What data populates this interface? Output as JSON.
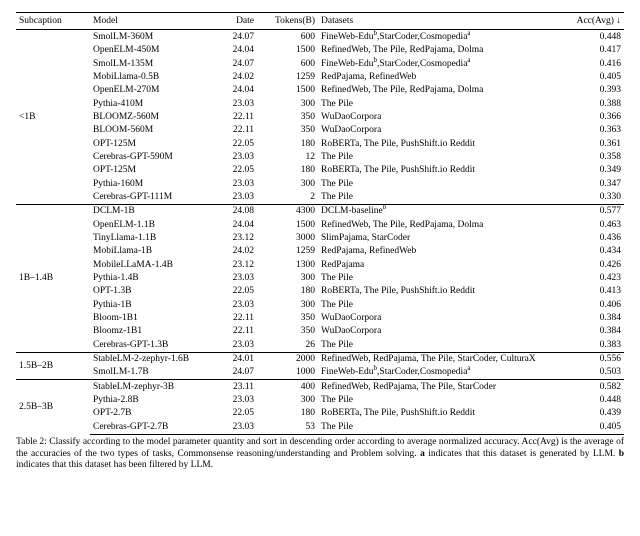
{
  "headers": {
    "subcaption": "Subcaption",
    "model": "Model",
    "date": "Date",
    "tokens": "Tokens(B)",
    "datasets": "Datasets",
    "acc": "Acc(Avg) ↓"
  },
  "groups": [
    {
      "label": "<1B",
      "rows": [
        {
          "model": "SmolLM-360M",
          "date": "24.07",
          "tokens": "600",
          "datasets": "FineWeb-Eduᵇ,StarCoder,Cosmopediaᵃ",
          "acc": "0.448"
        },
        {
          "model": "OpenELM-450M",
          "date": "24.04",
          "tokens": "1500",
          "datasets": "RefinedWeb, The Pile, RedPajama, Dolma",
          "acc": "0.417"
        },
        {
          "model": "SmolLM-135M",
          "date": "24.07",
          "tokens": "600",
          "datasets": "FineWeb-Eduᵇ,StarCoder,Cosmopediaᵃ",
          "acc": "0.416"
        },
        {
          "model": "MobiLlama-0.5B",
          "date": "24.02",
          "tokens": "1259",
          "datasets": "RedPajama, RefinedWeb",
          "acc": "0.405"
        },
        {
          "model": "OpenELM-270M",
          "date": "24.04",
          "tokens": "1500",
          "datasets": "RefinedWeb, The Pile, RedPajama, Dolma",
          "acc": "0.393"
        },
        {
          "model": "Pythia-410M",
          "date": "23.03",
          "tokens": "300",
          "datasets": "The Pile",
          "acc": "0.388"
        },
        {
          "model": "BLOOMZ-560M",
          "date": "22.11",
          "tokens": "350",
          "datasets": "WuDaoCorpora",
          "acc": "0.366"
        },
        {
          "model": "BLOOM-560M",
          "date": "22.11",
          "tokens": "350",
          "datasets": "WuDaoCorpora",
          "acc": "0.363"
        },
        {
          "model": "OPT-125M",
          "date": "22.05",
          "tokens": "180",
          "datasets": "RoBERTa, The Pile, PushShift.io Reddit",
          "acc": "0.361"
        },
        {
          "model": "Cerebras-GPT-590M",
          "date": "23.03",
          "tokens": "12",
          "datasets": "The Pile",
          "acc": "0.358"
        },
        {
          "model": "OPT-125M",
          "date": "22.05",
          "tokens": "180",
          "datasets": "RoBERTa, The Pile, PushShift.io Reddit",
          "acc": "0.349"
        },
        {
          "model": "Pythia-160M",
          "date": "23.03",
          "tokens": "300",
          "datasets": "The Pile",
          "acc": "0.347"
        },
        {
          "model": "Cerebras-GPT-111M",
          "date": "23.03",
          "tokens": "2",
          "datasets": "The Pile",
          "acc": "0.330"
        }
      ]
    },
    {
      "label": "1B–1.4B",
      "rows": [
        {
          "model": "DCLM-1B",
          "date": "24.08",
          "tokens": "4300",
          "datasets": "DCLM-baselineᵇ",
          "acc": "0.577"
        },
        {
          "model": "OpenELM-1.1B",
          "date": "24.04",
          "tokens": "1500",
          "datasets": "RefinedWeb, The Pile, RedPajama, Dolma",
          "acc": "0.463"
        },
        {
          "model": "TinyLlama-1.1B",
          "date": "23.12",
          "tokens": "3000",
          "datasets": "SlimPajama, StarCoder",
          "acc": "0.436"
        },
        {
          "model": "MobiLlama-1B",
          "date": "24.02",
          "tokens": "1259",
          "datasets": "RedPajama, RefinedWeb",
          "acc": "0.434"
        },
        {
          "model": "MobileLLaMA-1.4B",
          "date": "23.12",
          "tokens": "1300",
          "datasets": "RedPajama",
          "acc": "0.426"
        },
        {
          "model": "Pythia-1.4B",
          "date": "23.03",
          "tokens": "300",
          "datasets": "The Pile",
          "acc": "0.423"
        },
        {
          "model": "OPT-1.3B",
          "date": "22.05",
          "tokens": "180",
          "datasets": "RoBERTa, The Pile, PushShift.io Reddit",
          "acc": "0.413"
        },
        {
          "model": "Pythia-1B",
          "date": "23.03",
          "tokens": "300",
          "datasets": "The Pile",
          "acc": "0.406"
        },
        {
          "model": "Bloom-1B1",
          "date": "22.11",
          "tokens": "350",
          "datasets": "WuDaoCorpora",
          "acc": "0.384"
        },
        {
          "model": "Bloomz-1B1",
          "date": "22.11",
          "tokens": "350",
          "datasets": "WuDaoCorpora",
          "acc": "0.384"
        },
        {
          "model": "Cerebras-GPT-1.3B",
          "date": "23.03",
          "tokens": "26",
          "datasets": "The Pile",
          "acc": "0.383"
        }
      ]
    },
    {
      "label": "1.5B–2B",
      "rows": [
        {
          "model": "StableLM-2-zephyr-1.6B",
          "date": "24.01",
          "tokens": "2000",
          "datasets": "RefinedWeb, RedPajama, The Pile, StarCoder, CulturaX",
          "acc": "0.556"
        },
        {
          "model": "SmolLM-1.7B",
          "date": "24.07",
          "tokens": "1000",
          "datasets": "FineWeb-Eduᵇ,StarCoder,Cosmopediaᵃ",
          "acc": "0.503"
        }
      ]
    },
    {
      "label": "2.5B–3B",
      "rows": [
        {
          "model": "StableLM-zephyr-3B",
          "date": "23.11",
          "tokens": "400",
          "datasets": "RefinedWeb, RedPajama, The Pile, StarCoder",
          "acc": "0.582"
        },
        {
          "model": "Pythia-2.8B",
          "date": "23.03",
          "tokens": "300",
          "datasets": "The Pile",
          "acc": "0.448"
        },
        {
          "model": "OPT-2.7B",
          "date": "22.05",
          "tokens": "180",
          "datasets": "RoBERTa, The Pile, PushShift.io Reddit",
          "acc": "0.439"
        },
        {
          "model": "Cerebras-GPT-2.7B",
          "date": "23.03",
          "tokens": "53",
          "datasets": "The Pile",
          "acc": "0.405"
        }
      ]
    }
  ],
  "caption": "Table 2: Classify according to the model parameter quantity and sort in descending order according to average normalized accuracy. Acc(Avg) is the average of the accuracies of the two types of tasks, Commonsense reasoning/understanding and Problem solving. a indicates that this dataset is generated by LLM. b indicates that this dataset has been filtered by LLM."
}
